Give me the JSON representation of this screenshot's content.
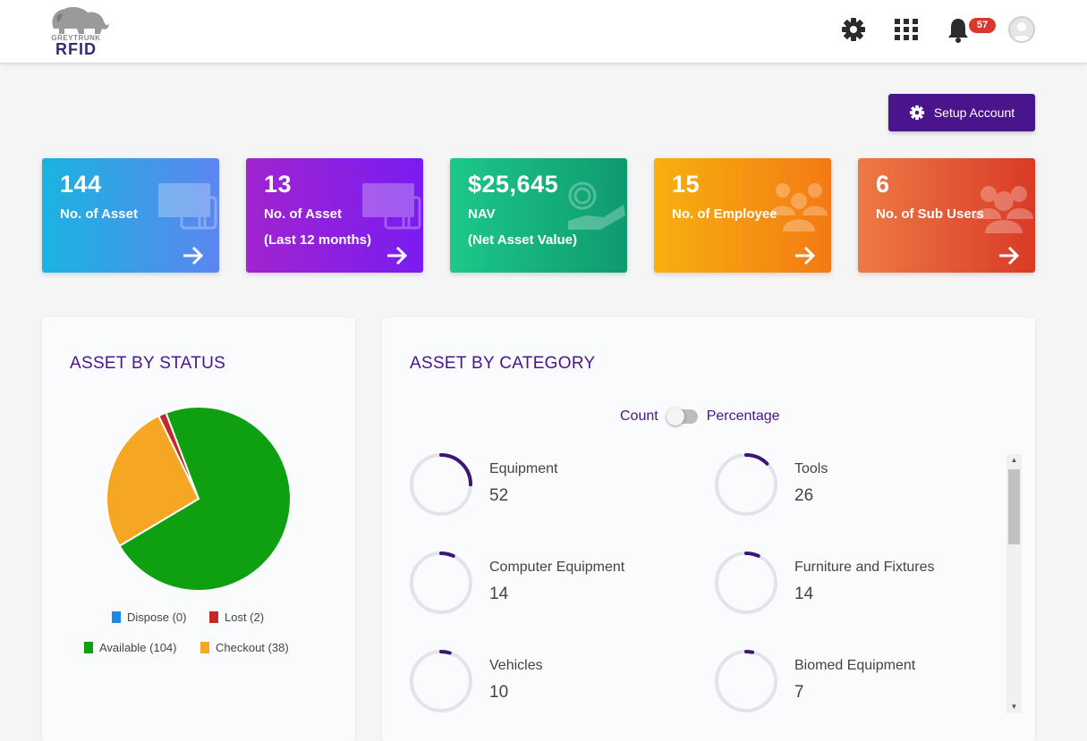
{
  "header": {
    "logo_top": "GREYTRUNK",
    "logo_main": "RFID",
    "notification_count": "57"
  },
  "setup_button": {
    "label": "Setup Account"
  },
  "cards": [
    {
      "value": "144",
      "label": "No. of Asset",
      "sublabel": "",
      "icon": "devices-icon"
    },
    {
      "value": "13",
      "label": "No. of Asset",
      "sublabel": "(Last 12 months)",
      "icon": "devices-icon"
    },
    {
      "value": "$25,645",
      "label": "NAV",
      "sublabel": "(Net Asset Value)",
      "icon": "money-hand-icon"
    },
    {
      "value": "15",
      "label": "No. of Employee",
      "sublabel": "",
      "icon": "people-icon"
    },
    {
      "value": "6",
      "label": "No. of Sub Users",
      "sublabel": "",
      "icon": "users-icon"
    }
  ],
  "status_panel": {
    "title": "ASSET BY STATUS",
    "legend": [
      {
        "label": "Dispose (0)",
        "color": "#1e88e5"
      },
      {
        "label": "Lost (2)",
        "color": "#c62828"
      },
      {
        "label": "Available (104)",
        "color": "#0ea010"
      },
      {
        "label": "Checkout (38)",
        "color": "#f5a623"
      }
    ]
  },
  "chart_data": {
    "type": "pie",
    "categories": [
      "Dispose",
      "Lost",
      "Available",
      "Checkout"
    ],
    "values": [
      0,
      2,
      104,
      38
    ],
    "colors": [
      "#1e88e5",
      "#c62828",
      "#0ea010",
      "#f5a623"
    ],
    "legend_position": "bottom"
  },
  "category_panel": {
    "title": "ASSET BY CATEGORY",
    "toggle_left": "Count",
    "toggle_right": "Percentage",
    "items": [
      {
        "name": "Equipment",
        "count": "52",
        "fraction": 0.25
      },
      {
        "name": "Tools",
        "count": "26",
        "fraction": 0.125
      },
      {
        "name": "Computer Equipment",
        "count": "14",
        "fraction": 0.068
      },
      {
        "name": "Furniture and Fixtures",
        "count": "14",
        "fraction": 0.068
      },
      {
        "name": "Vehicles",
        "count": "10",
        "fraction": 0.048
      },
      {
        "name": "Biomed Equipment",
        "count": "7",
        "fraction": 0.034
      }
    ]
  }
}
